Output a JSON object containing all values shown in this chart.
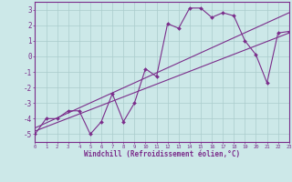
{
  "scatter_x": [
    0,
    1,
    2,
    3,
    4,
    5,
    6,
    7,
    8,
    9,
    10,
    11,
    12,
    13,
    14,
    15,
    16,
    17,
    18,
    19,
    20,
    21,
    22,
    23
  ],
  "scatter_y": [
    -5,
    -4,
    -4,
    -3.5,
    -3.5,
    -5,
    -4.2,
    -2.4,
    -4.2,
    -3.0,
    -0.8,
    -1.3,
    2.1,
    1.8,
    3.1,
    3.1,
    2.5,
    2.8,
    2.6,
    1.0,
    0.1,
    -1.7,
    1.5,
    1.6
  ],
  "line1_x": [
    0,
    23
  ],
  "line1_y": [
    -4.8,
    1.5
  ],
  "line2_x": [
    0,
    23
  ],
  "line2_y": [
    -4.6,
    2.8
  ],
  "color": "#7b2d8b",
  "bg_color": "#cce8e8",
  "grid_color": "#aacccc",
  "xlabel": "Windchill (Refroidissement éolien,°C)",
  "xlim": [
    0,
    23
  ],
  "ylim": [
    -5.5,
    3.5
  ],
  "yticks": [
    -5,
    -4,
    -3,
    -2,
    -1,
    0,
    1,
    2,
    3
  ],
  "xticks": [
    0,
    1,
    2,
    3,
    4,
    5,
    6,
    7,
    8,
    9,
    10,
    11,
    12,
    13,
    14,
    15,
    16,
    17,
    18,
    19,
    20,
    21,
    22,
    23
  ]
}
